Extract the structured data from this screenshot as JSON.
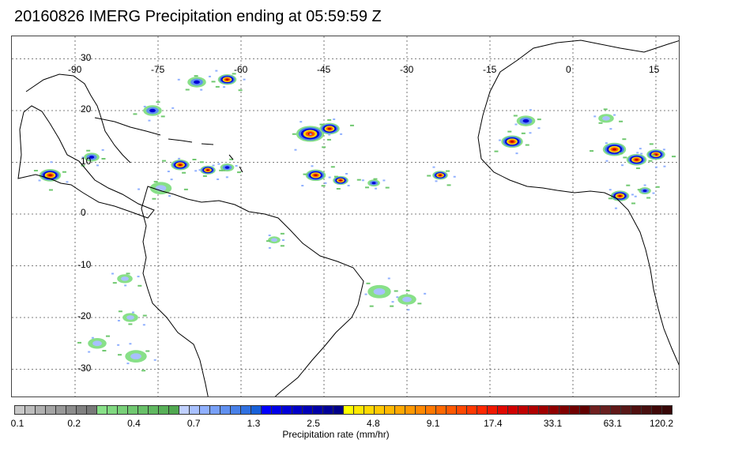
{
  "title": "20160826 IMERG Precipitation ending at 05:59:59 Z",
  "map": {
    "lon_labels": [
      "-90",
      "-75",
      "-60",
      "-45",
      "-30",
      "-15",
      "0",
      "15"
    ],
    "lat_labels": [
      "30",
      "20",
      "10",
      "0",
      "-10",
      "-20",
      "-30"
    ],
    "grid": "dotted",
    "coastline_color": "#000000"
  },
  "colorbar": {
    "title": "Precipitation rate (mm/hr)",
    "labels": [
      "0.1",
      "0.2",
      "0.4",
      "0.7",
      "1.3",
      "2.5",
      "4.8",
      "9.1",
      "17.4",
      "33.1",
      "63.1",
      "120.2"
    ],
    "colors": [
      "#c8c8c8",
      "#bcbcbc",
      "#b0b0b0",
      "#a4a4a4",
      "#989898",
      "#8c8c8c",
      "#808080",
      "#787878",
      "#88e088",
      "#80d880",
      "#78d078",
      "#70c870",
      "#68c068",
      "#60b860",
      "#58b058",
      "#50a850",
      "#c0d0ff",
      "#a8c0ff",
      "#90b0ff",
      "#78a0f8",
      "#6090f0",
      "#4880e8",
      "#3070e0",
      "#1860d8",
      "#0000ff",
      "#0000e8",
      "#0000d8",
      "#0000c8",
      "#0000b8",
      "#0000a8",
      "#000098",
      "#000088",
      "#ffff00",
      "#ffe800",
      "#ffd800",
      "#ffc800",
      "#ffb800",
      "#ffa800",
      "#ff9800",
      "#ff8800",
      "#ff7800",
      "#ff6800",
      "#ff5800",
      "#ff4800",
      "#ff3800",
      "#ff2800",
      "#f01800",
      "#e00800",
      "#d00000",
      "#c00000",
      "#b00000",
      "#a00000",
      "#900000",
      "#800000",
      "#700000",
      "#600000",
      "#702020",
      "#682020",
      "#601818",
      "#581818",
      "#501010",
      "#481010",
      "#400808",
      "#380808"
    ]
  },
  "precip_cells": [
    {
      "lon": -47.5,
      "lat": 15.5,
      "r": 1.8,
      "level": "heavy"
    },
    {
      "lon": -44.0,
      "lat": 16.5,
      "r": 1.3,
      "level": "heavy"
    },
    {
      "lon": -68.0,
      "lat": 25.5,
      "r": 1.2,
      "level": "moderate"
    },
    {
      "lon": -62.5,
      "lat": 26.0,
      "r": 1.2,
      "level": "heavy"
    },
    {
      "lon": -94.5,
      "lat": 7.5,
      "r": 1.4,
      "level": "heavy"
    },
    {
      "lon": -87.0,
      "lat": 11.0,
      "r": 1.0,
      "level": "moderate"
    },
    {
      "lon": -76.0,
      "lat": 20.0,
      "r": 1.2,
      "level": "moderate"
    },
    {
      "lon": -71.0,
      "lat": 9.5,
      "r": 1.2,
      "level": "heavy"
    },
    {
      "lon": -66.0,
      "lat": 8.5,
      "r": 1.0,
      "level": "heavy"
    },
    {
      "lon": -62.5,
      "lat": 9.0,
      "r": 0.9,
      "level": "moderate"
    },
    {
      "lon": -46.5,
      "lat": 7.5,
      "r": 1.3,
      "level": "heavy"
    },
    {
      "lon": -42.0,
      "lat": 6.5,
      "r": 1.0,
      "level": "heavy"
    },
    {
      "lon": -36.0,
      "lat": 6.0,
      "r": 0.8,
      "level": "moderate"
    },
    {
      "lon": -24.0,
      "lat": 7.5,
      "r": 1.0,
      "level": "heavy"
    },
    {
      "lon": -8.5,
      "lat": 18.0,
      "r": 1.2,
      "level": "moderate"
    },
    {
      "lon": -11.0,
      "lat": 14.0,
      "r": 1.4,
      "level": "heavy"
    },
    {
      "lon": 7.5,
      "lat": 12.5,
      "r": 1.5,
      "level": "heavy"
    },
    {
      "lon": 11.5,
      "lat": 10.5,
      "r": 1.3,
      "level": "heavy"
    },
    {
      "lon": 15.0,
      "lat": 11.5,
      "r": 1.2,
      "level": "heavy"
    },
    {
      "lon": 8.5,
      "lat": 3.5,
      "r": 1.2,
      "level": "heavy"
    },
    {
      "lon": 13.0,
      "lat": 4.5,
      "r": 0.8,
      "level": "moderate"
    },
    {
      "lon": -74.5,
      "lat": 5.0,
      "r": 1.4,
      "level": "light"
    },
    {
      "lon": -81.0,
      "lat": -12.5,
      "r": 1.0,
      "level": "light"
    },
    {
      "lon": -79.0,
      "lat": -27.5,
      "r": 1.4,
      "level": "light"
    },
    {
      "lon": -35.0,
      "lat": -15.0,
      "r": 1.5,
      "level": "light"
    },
    {
      "lon": -30.0,
      "lat": -16.5,
      "r": 1.2,
      "level": "light"
    },
    {
      "lon": -86.0,
      "lat": -25.0,
      "r": 1.2,
      "level": "light"
    },
    {
      "lon": -80.0,
      "lat": -20.0,
      "r": 1.0,
      "level": "light"
    },
    {
      "lon": 6.0,
      "lat": 18.5,
      "r": 1.0,
      "level": "light"
    },
    {
      "lon": -54.0,
      "lat": -5.0,
      "r": 0.8,
      "level": "light"
    }
  ]
}
